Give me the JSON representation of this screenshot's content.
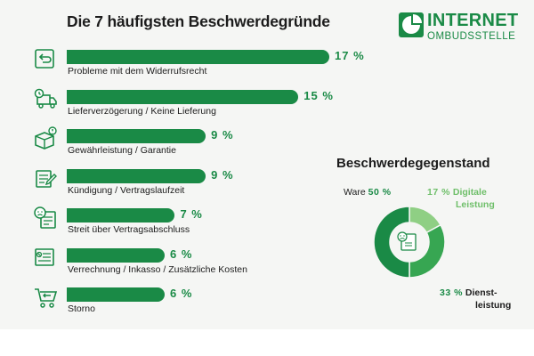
{
  "brand": {
    "line1": "INTERNET",
    "line2": "OMBUDSSTELLE",
    "color_dark": "#1a8a46",
    "color_mid": "#37a652",
    "color_light": "#8fcf84"
  },
  "chart_data": [
    {
      "type": "bar",
      "title": "Die 7 häufigsten Beschwerdegründe",
      "categories": [
        "Probleme mit dem Widerrufsrecht",
        "Lieferverzögerung / Keine Lieferung",
        "Gewährleistung / Garantie",
        "Kündigung / Vertragslaufzeit",
        "Streit über Vertragsabschluss",
        "Verrechnung / Inkasso / Zusätzliche Kosten",
        "Storno"
      ],
      "values": [
        17,
        15,
        9,
        9,
        7,
        6,
        6
      ],
      "value_labels": [
        "17 %",
        "15 %",
        "9 %",
        "9 %",
        "7 %",
        "6 %",
        "6 %"
      ],
      "icons": [
        "return-box-icon",
        "delivery-truck-icon",
        "warranty-box-icon",
        "contract-cancel-icon",
        "dispute-document-icon",
        "invoice-icon",
        "cart-return-icon"
      ],
      "xlim": [
        0,
        17
      ]
    },
    {
      "type": "pie",
      "title": "Beschwerdegegenstand",
      "slices": [
        {
          "name": "Ware",
          "value": 50,
          "label": "50 %",
          "color": "#1a8a46"
        },
        {
          "name": "Digitale Leistung",
          "value": 17,
          "label": "17 %",
          "color": "#8fcf84"
        },
        {
          "name": "Dienstleistung",
          "value": 33,
          "label": "33 %",
          "color": "#37a652"
        }
      ],
      "label_lines": {
        "ware": "Ware",
        "digital_1": "Digitale",
        "digital_2": "Leistung",
        "dienst_1": "Dienst-",
        "dienst_2": "leistung"
      }
    }
  ]
}
